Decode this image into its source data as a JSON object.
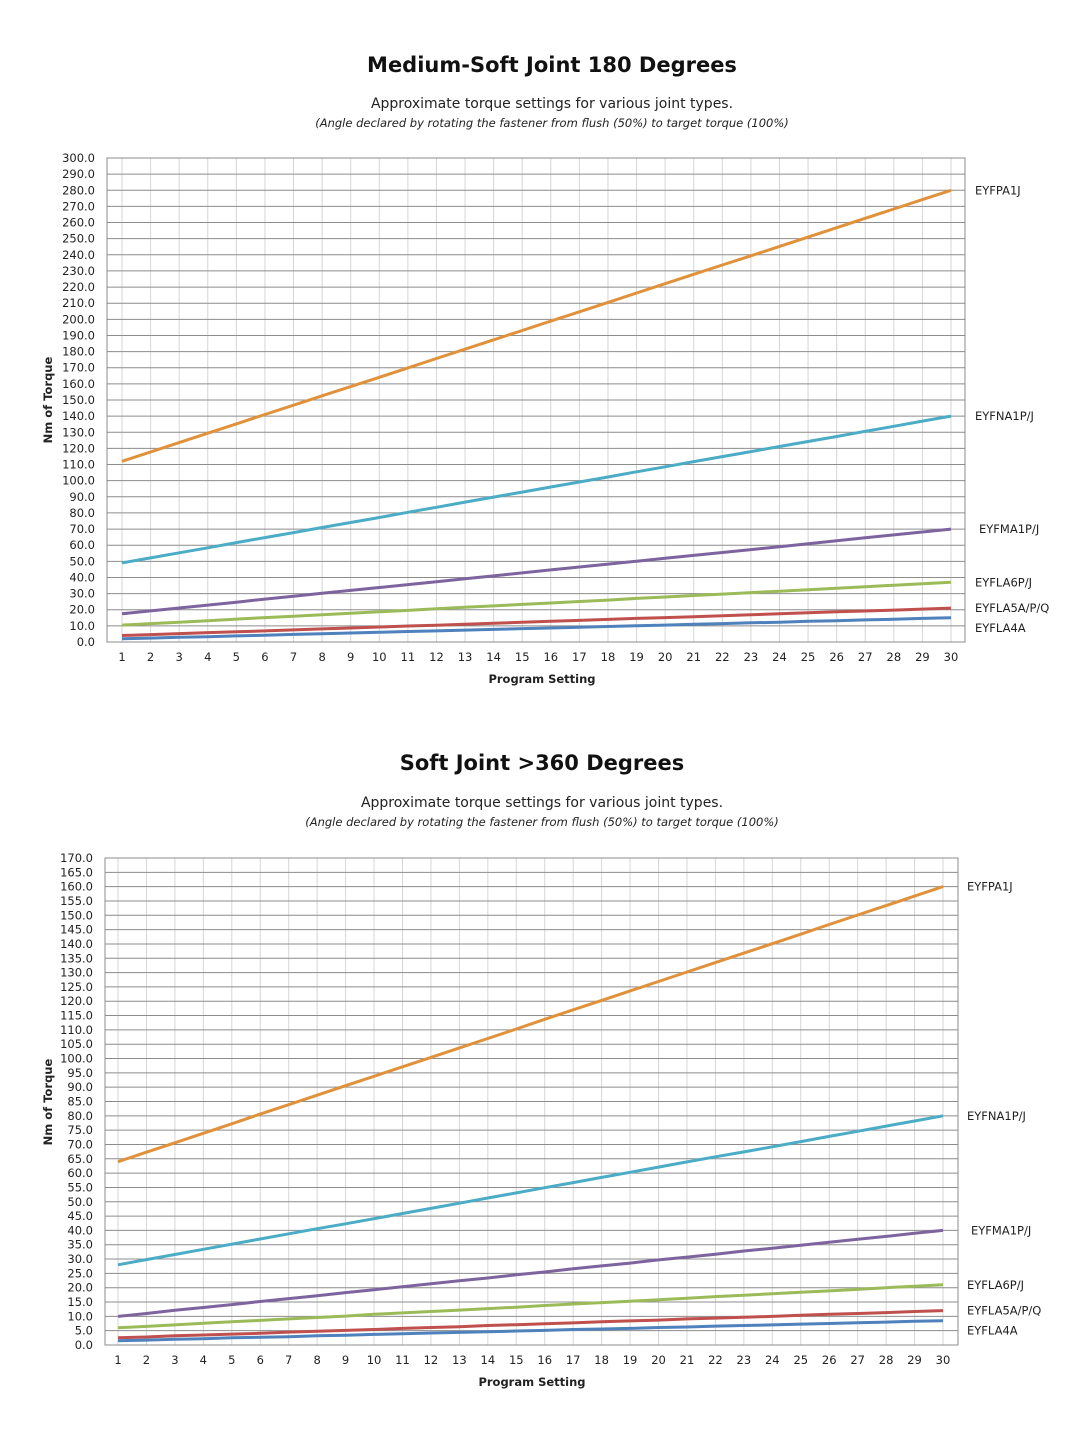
{
  "chart_data": [
    {
      "type": "line",
      "title": "Medium-Soft Joint 180 Degrees",
      "subtitle": "Approximate torque settings for various joint types.",
      "note": "(Angle declared by rotating the fastener from flush (50%) to target torque (100%)",
      "xlabel": "Program Setting",
      "ylabel": "Nm of Torque",
      "ylim": [
        0,
        300
      ],
      "ytick_step": 10,
      "x": [
        1,
        2,
        3,
        4,
        5,
        6,
        7,
        8,
        9,
        10,
        11,
        12,
        13,
        14,
        15,
        16,
        17,
        18,
        19,
        20,
        21,
        22,
        23,
        24,
        25,
        26,
        27,
        28,
        29,
        30
      ],
      "grid": true,
      "legend": "right, at line ends",
      "series": [
        {
          "name": "EYFPA1J",
          "color": "#E0913A",
          "values": [
            112,
            117.8,
            123.6,
            129.4,
            135.2,
            141,
            146.8,
            152.6,
            158.3,
            164.1,
            169.9,
            175.7,
            181.5,
            187.3,
            193.1,
            198.9,
            204.7,
            210.5,
            216.3,
            222.1,
            227.9,
            233.7,
            239.4,
            245.2,
            251,
            256.8,
            262.6,
            268.4,
            274.2,
            280
          ]
        },
        {
          "name": "EYFNA1P/J",
          "color": "#4BACC6",
          "values": [
            49,
            52.1,
            55.3,
            58.4,
            61.6,
            64.7,
            67.8,
            71,
            74.1,
            77.2,
            80.4,
            83.5,
            86.7,
            89.8,
            92.9,
            96.1,
            99.2,
            102.3,
            105.5,
            108.6,
            111.8,
            114.9,
            118,
            121.2,
            124.3,
            127.4,
            130.6,
            133.7,
            136.9,
            140
          ]
        },
        {
          "name": "EYFMA1P/J",
          "color": "#7E649E",
          "values": [
            17.5,
            19.3,
            21.1,
            22.9,
            24.7,
            26.6,
            28.4,
            30.2,
            32,
            33.8,
            35.6,
            37.4,
            39.2,
            41,
            42.8,
            44.7,
            46.5,
            48.3,
            50.1,
            51.9,
            53.7,
            55.5,
            57.3,
            59.1,
            60.9,
            62.8,
            64.6,
            66.4,
            68.2,
            70
          ]
        },
        {
          "name": "EYFLA6P/J",
          "color": "#9BBB59",
          "values": [
            10.5,
            11.4,
            12.3,
            13.2,
            14.2,
            15.1,
            16,
            16.9,
            17.8,
            18.7,
            19.6,
            20.6,
            21.5,
            22.4,
            23.3,
            24.2,
            25.1,
            26,
            27,
            27.9,
            28.8,
            29.7,
            30.6,
            31.5,
            32.4,
            33.3,
            34.3,
            35.2,
            36.1,
            37
          ]
        },
        {
          "name": "EYFLA5A/P/Q",
          "color": "#C0504D",
          "values": [
            4,
            4.6,
            5.2,
            5.8,
            6.3,
            6.9,
            7.5,
            8.1,
            8.7,
            9.3,
            9.9,
            10.4,
            11,
            11.6,
            12.2,
            12.8,
            13.4,
            14,
            14.6,
            15.1,
            15.7,
            16.3,
            16.9,
            17.5,
            18.1,
            18.7,
            19.2,
            19.8,
            20.4,
            21
          ]
        },
        {
          "name": "EYFLA4A",
          "color": "#4F81BD",
          "values": [
            2,
            2.4,
            2.9,
            3.3,
            3.8,
            4.2,
            4.7,
            5.1,
            5.6,
            6,
            6.5,
            6.9,
            7.4,
            7.8,
            8.3,
            8.7,
            9.2,
            9.6,
            10.1,
            10.5,
            11,
            11.4,
            11.9,
            12.3,
            12.8,
            13.2,
            13.7,
            14.1,
            14.6,
            15
          ]
        }
      ]
    },
    {
      "type": "line",
      "title": "Soft Joint >360 Degrees",
      "subtitle": "Approximate torque settings for various joint types.",
      "note": "(Angle declared by rotating the fastener from flush (50%) to target torque (100%)",
      "xlabel": "Program Setting",
      "ylabel": "Nm of Torque",
      "ylim": [
        0,
        170
      ],
      "ytick_step": 5,
      "x": [
        1,
        2,
        3,
        4,
        5,
        6,
        7,
        8,
        9,
        10,
        11,
        12,
        13,
        14,
        15,
        16,
        17,
        18,
        19,
        20,
        21,
        22,
        23,
        24,
        25,
        26,
        27,
        28,
        29,
        30
      ],
      "grid": true,
      "legend": "right, at line ends",
      "series": [
        {
          "name": "EYFPA1J",
          "color": "#E0913A",
          "values": [
            64,
            67.3,
            70.6,
            73.9,
            77.2,
            80.6,
            83.9,
            87.2,
            90.5,
            93.8,
            97.1,
            100.4,
            103.7,
            107,
            110.3,
            113.7,
            117,
            120.3,
            123.6,
            126.9,
            130.2,
            133.5,
            136.8,
            140.1,
            143.4,
            146.8,
            150.1,
            153.4,
            156.7,
            160
          ]
        },
        {
          "name": "EYFNA1P/J",
          "color": "#4BACC6",
          "values": [
            28,
            29.8,
            31.6,
            33.4,
            35.2,
            37,
            38.8,
            40.6,
            42.3,
            44.1,
            45.9,
            47.7,
            49.5,
            51.3,
            53.1,
            54.9,
            56.7,
            58.5,
            60.3,
            62.1,
            63.9,
            65.7,
            67.4,
            69.2,
            71,
            72.8,
            74.6,
            76.4,
            78.2,
            80
          ]
        },
        {
          "name": "EYFMA1P/J",
          "color": "#7E649E",
          "values": [
            10,
            11,
            12.1,
            13.1,
            14.1,
            15.2,
            16.2,
            17.2,
            18.3,
            19.3,
            20.3,
            21.4,
            22.4,
            23.4,
            24.5,
            25.5,
            26.6,
            27.6,
            28.6,
            29.7,
            30.7,
            31.7,
            32.8,
            33.8,
            34.8,
            35.9,
            36.9,
            37.9,
            39,
            40
          ]
        },
        {
          "name": "EYFLA6P/J",
          "color": "#9BBB59",
          "values": [
            6,
            6.5,
            7,
            7.6,
            8.1,
            8.6,
            9.1,
            9.6,
            10.1,
            10.7,
            11.2,
            11.7,
            12.2,
            12.7,
            13.2,
            13.8,
            14.3,
            14.8,
            15.3,
            15.8,
            16.3,
            16.9,
            17.4,
            17.9,
            18.4,
            18.9,
            19.4,
            20,
            20.5,
            21
          ]
        },
        {
          "name": "EYFLA5A/P/Q",
          "color": "#C0504D",
          "values": [
            2.5,
            2.8,
            3.2,
            3.5,
            3.8,
            4.1,
            4.5,
            4.8,
            5.1,
            5.4,
            5.8,
            6.1,
            6.4,
            6.8,
            7.1,
            7.4,
            7.7,
            8.1,
            8.4,
            8.7,
            9.1,
            9.4,
            9.7,
            10,
            10.4,
            10.7,
            11,
            11.3,
            11.7,
            12
          ]
        },
        {
          "name": "EYFLA4A",
          "color": "#4F81BD",
          "values": [
            1.5,
            1.7,
            2,
            2.2,
            2.5,
            2.7,
            2.9,
            3.2,
            3.4,
            3.7,
            3.9,
            4.2,
            4.4,
            4.6,
            4.9,
            5.1,
            5.4,
            5.6,
            5.8,
            6.1,
            6.3,
            6.6,
            6.8,
            7,
            7.3,
            7.5,
            7.8,
            8,
            8.3,
            8.5
          ]
        }
      ]
    }
  ]
}
